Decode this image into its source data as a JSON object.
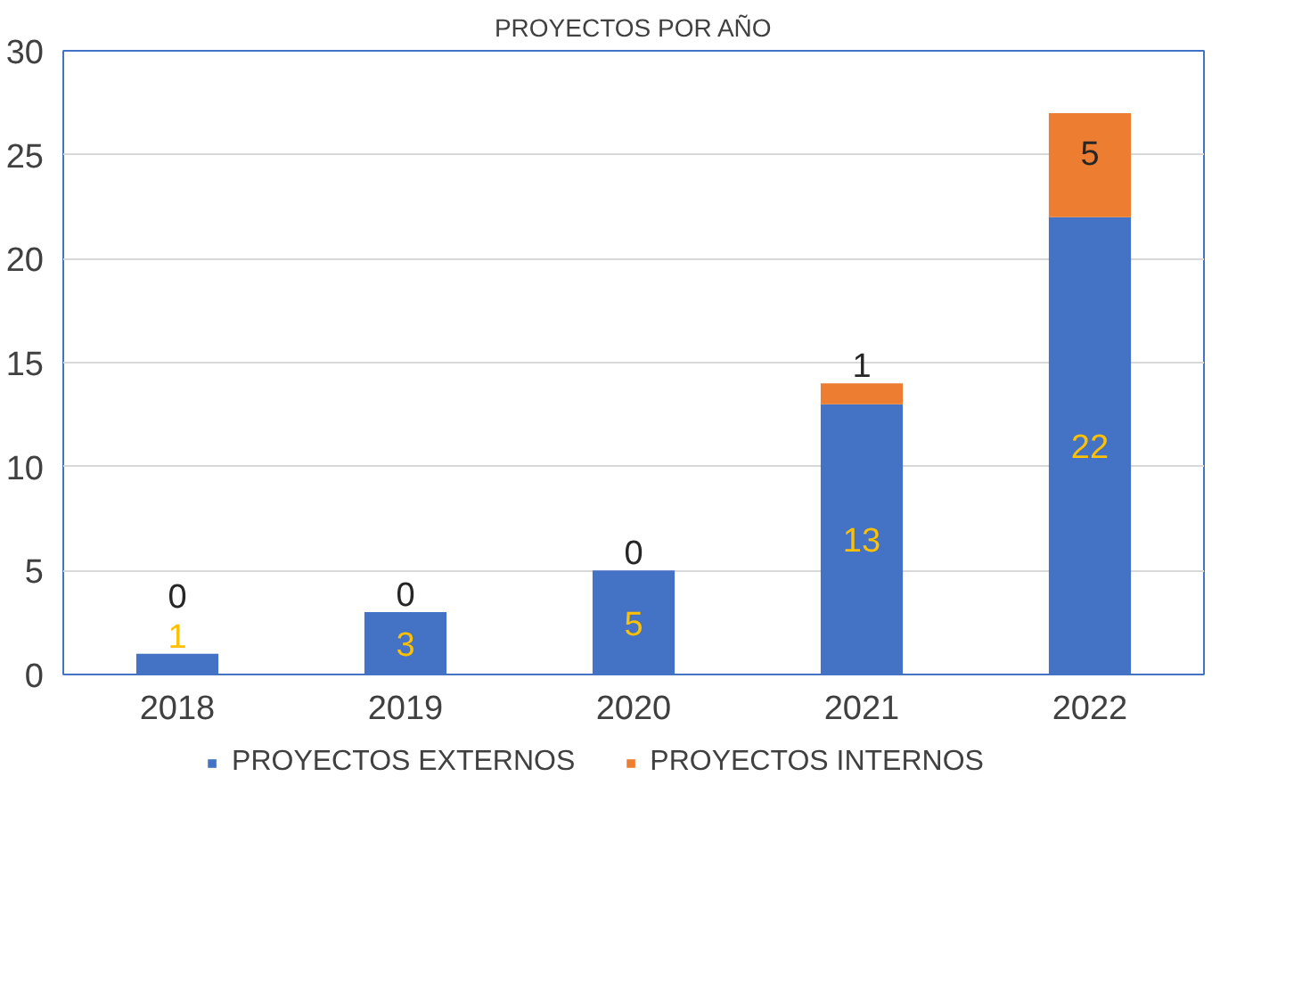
{
  "chart_data": {
    "type": "bar",
    "title": "PROYECTOS POR AÑO",
    "stacked": true,
    "categories": [
      "2018",
      "2019",
      "2020",
      "2021",
      "2022"
    ],
    "series": [
      {
        "name": "PROYECTOS EXTERNOS",
        "color": "#4472c4",
        "values": [
          1,
          3,
          5,
          13,
          22
        ]
      },
      {
        "name": "PROYECTOS INTERNOS",
        "color": "#ed7d31",
        "values": [
          0,
          0,
          0,
          1,
          5
        ]
      }
    ],
    "ylim": [
      0,
      30
    ],
    "yticks": [
      0,
      5,
      10,
      15,
      20,
      25,
      30
    ],
    "grid": "y",
    "legend": "bottom",
    "data_labels": true
  }
}
